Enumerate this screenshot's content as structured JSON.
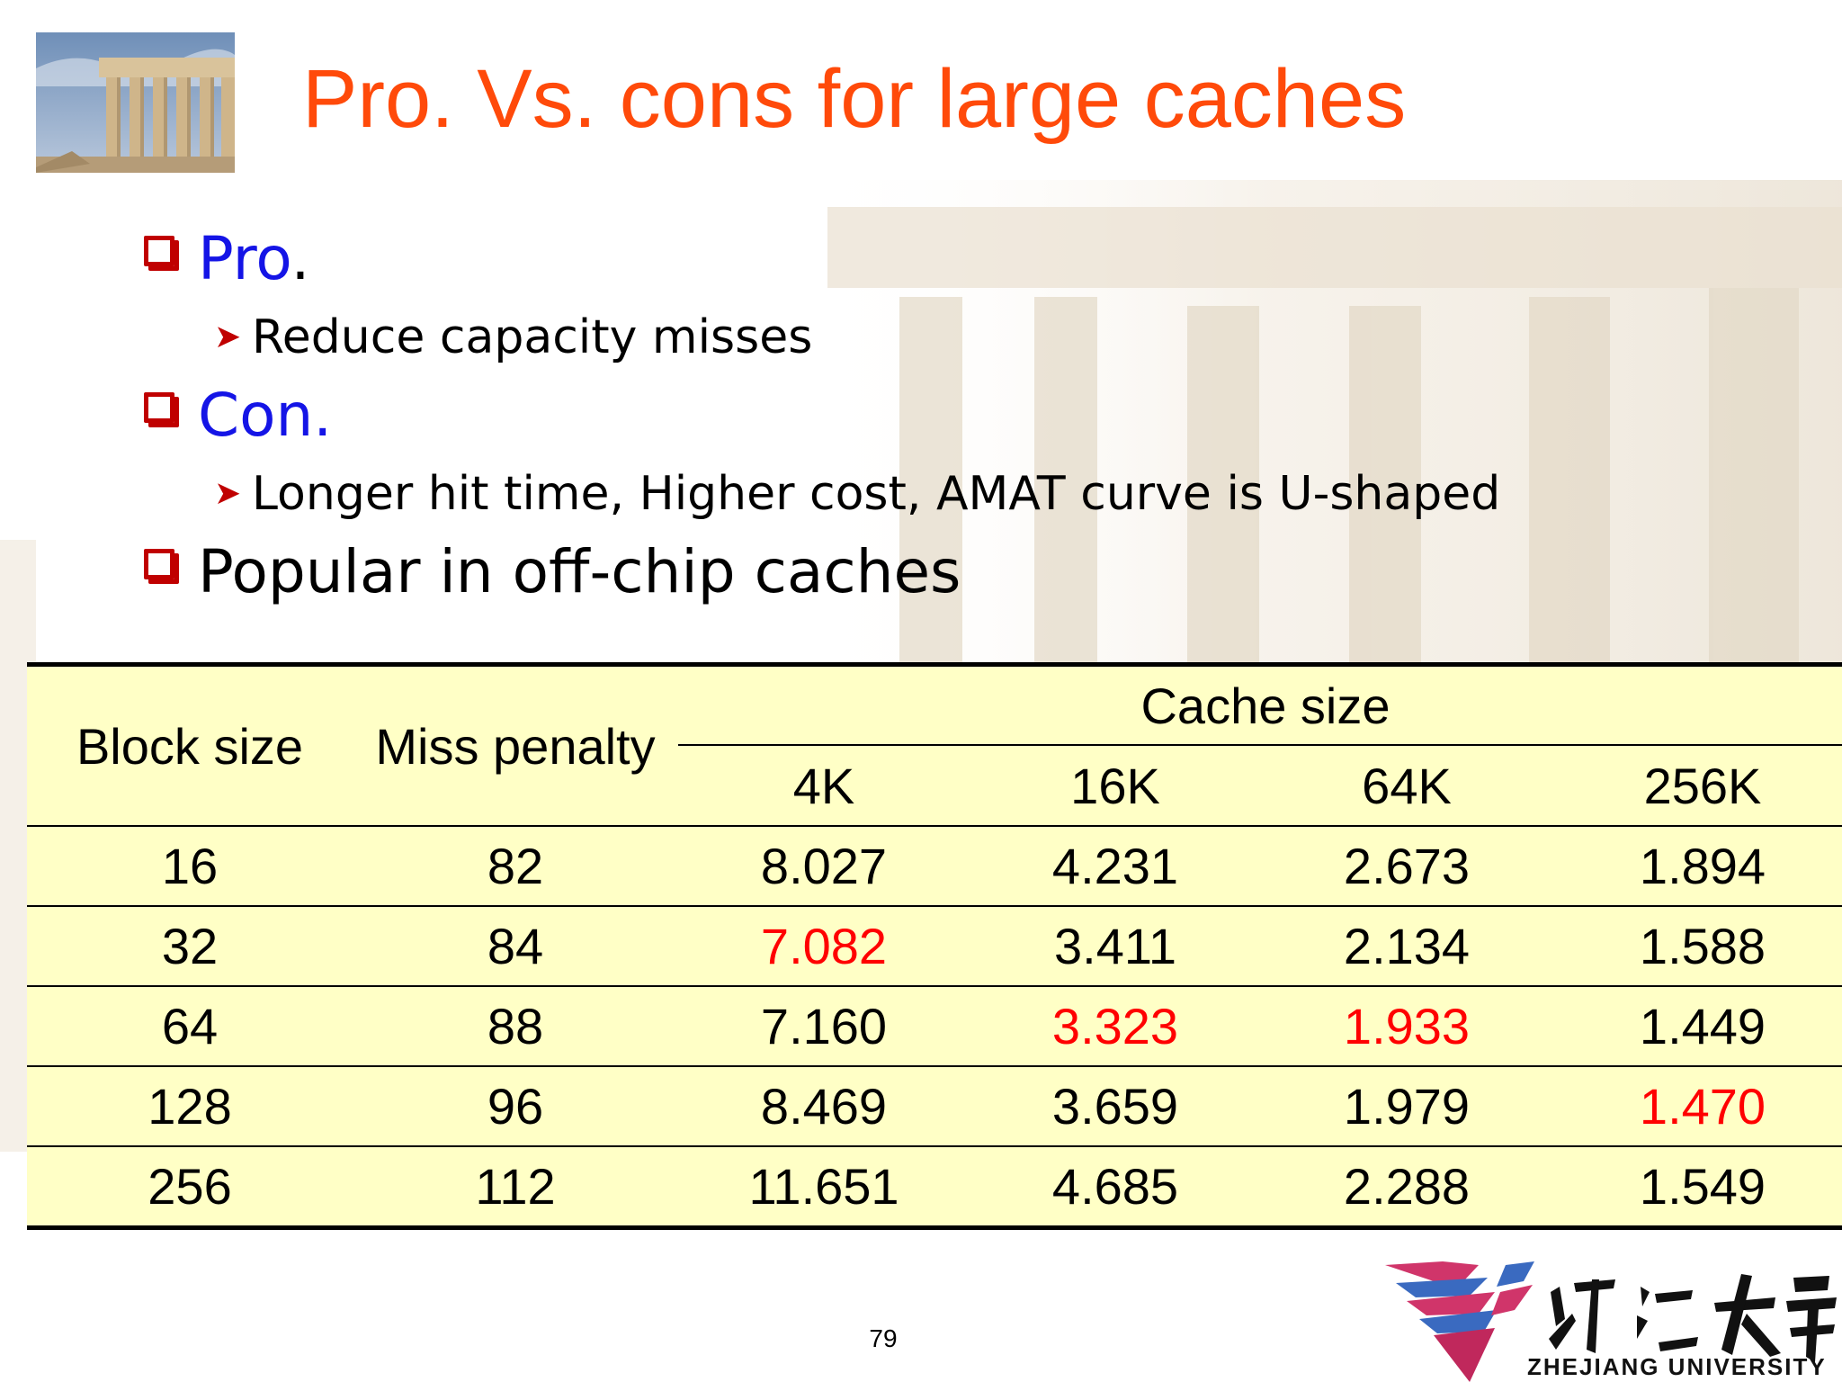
{
  "slide": {
    "title": "Pro. Vs. cons for large caches",
    "page_number": "79"
  },
  "bullets": [
    {
      "label": "Pro",
      "suffix": ".",
      "sub": "Reduce capacity misses"
    },
    {
      "label": "Con.",
      "suffix": "",
      "sub": "Longer hit time,  Higher cost, AMAT curve is U-shaped"
    },
    {
      "label": "Popular in off-chip caches",
      "suffix": "",
      "sub": ""
    }
  ],
  "table": {
    "col_block": "Block size",
    "col_penalty": "Miss penalty",
    "group_header": "Cache size",
    "sizes": [
      "4K",
      "16K",
      "64K",
      "256K"
    ],
    "rows": [
      {
        "block": "16",
        "penalty": "82",
        "values": [
          "8.027",
          "4.231",
          "2.673",
          "1.894"
        ]
      },
      {
        "block": "32",
        "penalty": "84",
        "values": [
          "7.082",
          "3.411",
          "2.134",
          "1.588"
        ]
      },
      {
        "block": "64",
        "penalty": "88",
        "values": [
          "7.160",
          "3.323",
          "1.933",
          "1.449"
        ]
      },
      {
        "block": "128",
        "penalty": "96",
        "values": [
          "8.469",
          "3.659",
          "1.979",
          "1.470"
        ]
      },
      {
        "block": "256",
        "penalty": "112",
        "values": [
          "11.651",
          "4.685",
          "2.288",
          "1.549"
        ]
      }
    ],
    "highlight_color": "#ff0000"
  },
  "logo": {
    "name": "ZHEJIANG UNIVERSITY",
    "chinese": "浙江大學"
  }
}
